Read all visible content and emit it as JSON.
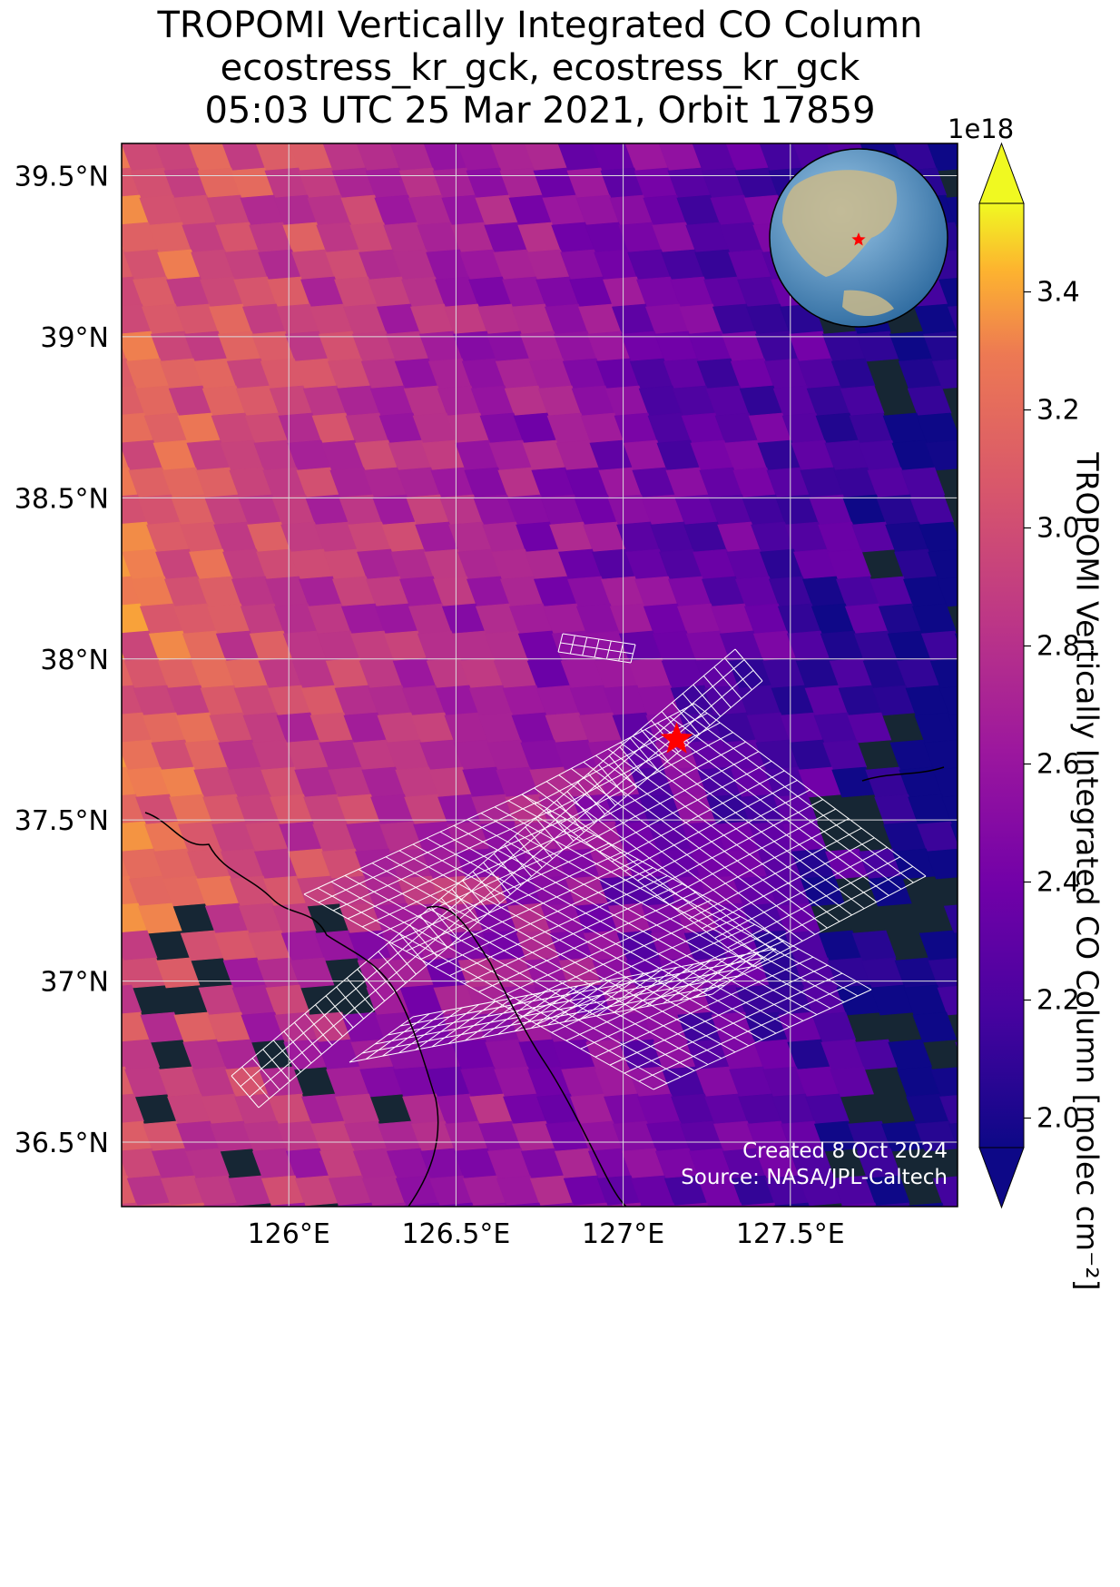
{
  "title": {
    "line1": "TROPOMI Vertically Integrated CO Column",
    "line2": "ecostress_kr_gck, ecostress_kr_gck",
    "line3": "05:03 UTC 25 Mar 2021, Orbit 17859"
  },
  "colorbar": {
    "label": "TROPOMI Vertically Integrated CO Column [molec cm⁻²]",
    "multiplier": "1e18",
    "ticks": [
      "2.0",
      "2.2",
      "2.4",
      "2.6",
      "2.8",
      "3.0",
      "3.2",
      "3.4"
    ],
    "tick_values": [
      2.0,
      2.2,
      2.4,
      2.6,
      2.8,
      3.0,
      3.2,
      3.4
    ],
    "range": [
      1.95,
      3.55
    ],
    "extend": "both",
    "colormap": "plasma"
  },
  "map": {
    "lat_ticks": [
      "39.5°N",
      "39°N",
      "38.5°N",
      "38°N",
      "37.5°N",
      "37°N",
      "36.5°N"
    ],
    "lat_values": [
      39.5,
      39.0,
      38.5,
      38.0,
      37.5,
      37.0,
      36.5
    ],
    "lon_ticks": [
      "126°E",
      "126.5°E",
      "127°E",
      "127.5°E"
    ],
    "lon_values": [
      126.0,
      126.5,
      127.0,
      127.5
    ],
    "lon_range": [
      125.5,
      128.0
    ],
    "lat_range": [
      36.3,
      39.6
    ],
    "gridlines": true,
    "target_marker": {
      "lon": 127.16,
      "lat": 37.75,
      "color": "#ff0000",
      "symbol": "star"
    },
    "inset_globe": {
      "position": "top-right",
      "marker_color": "#ff0000"
    },
    "colors": {
      "water": "#162634",
      "land": "#3c4a2c",
      "footprint_outline": "#ffffff",
      "grid": "#dddddd"
    }
  },
  "credits": {
    "created": "Created 8 Oct 2024",
    "source": "Source: NASA/JPL-Caltech"
  }
}
